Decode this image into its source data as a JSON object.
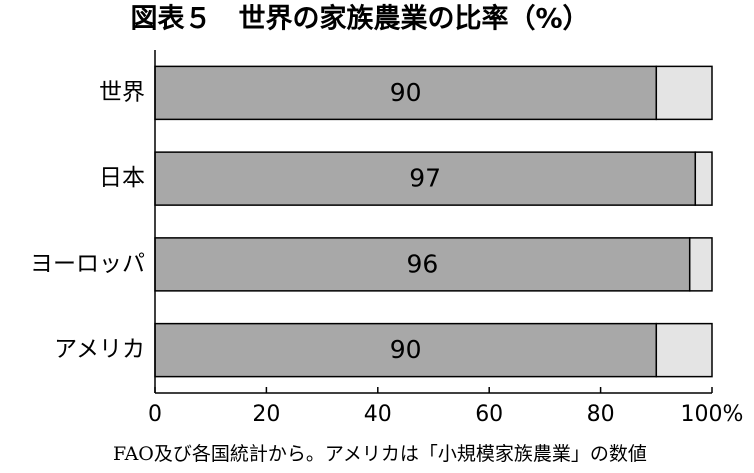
{
  "chart_data": {
    "type": "bar",
    "orientation": "horizontal",
    "stacked": true,
    "title": "図表５　世界の家族農業の比率（%）",
    "categories": [
      "世界",
      "日本",
      "ヨーロッパ",
      "アメリカ"
    ],
    "series": [
      {
        "color": "#a8a8a8",
        "values": [
          90,
          97,
          96,
          90
        ]
      },
      {
        "color": "#e4e4e4",
        "values": [
          10,
          3,
          4,
          10
        ]
      }
    ],
    "xlim": [
      0,
      100
    ],
    "xticks": [
      0,
      20,
      40,
      60,
      80,
      {
        "value": 100,
        "label": "100%"
      }
    ],
    "note": "FAO及び各国統計から。アメリカは「小規模家族農業」の数値"
  }
}
